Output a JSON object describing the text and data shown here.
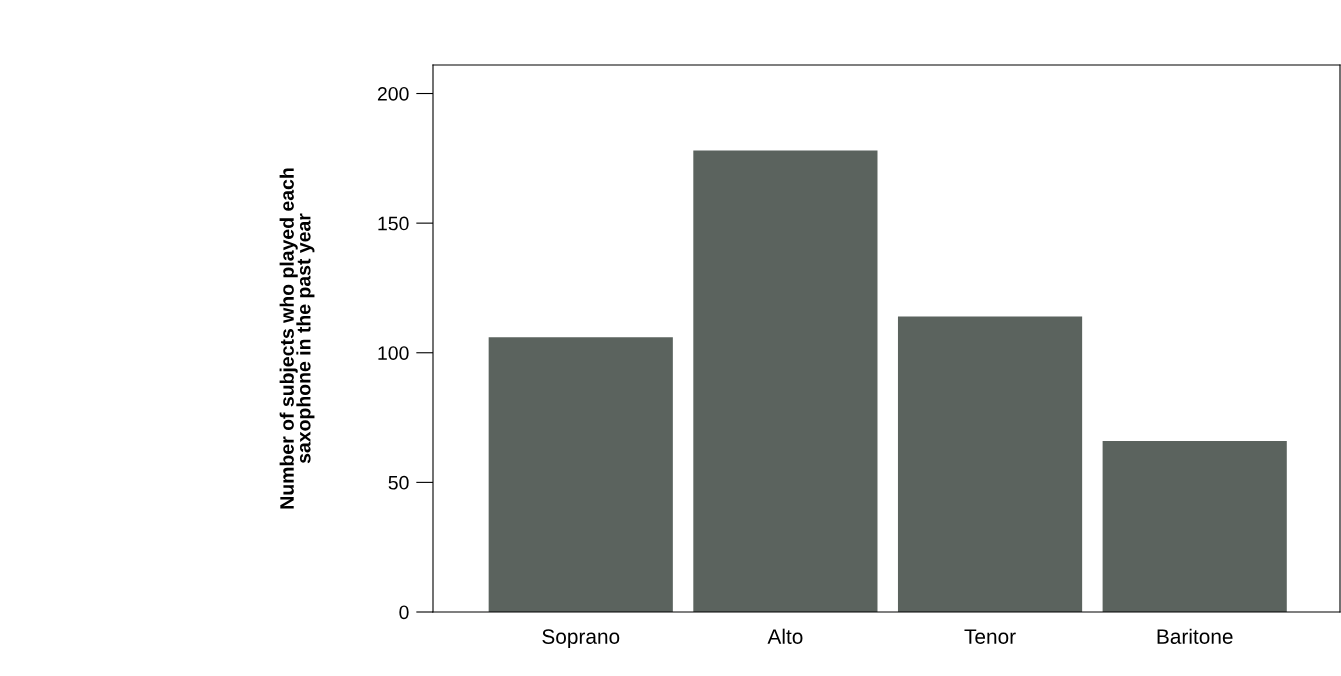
{
  "chart_data": {
    "type": "bar",
    "categories": [
      "Soprano",
      "Alto",
      "Tenor",
      "Baritone"
    ],
    "values": [
      106,
      178,
      114,
      66
    ],
    "color": "#5b635e",
    "ylabel": "Number of subjects who played each\nsaxophone in the past year",
    "ylim": [
      0,
      211
    ],
    "yticks": [
      0,
      50,
      100,
      150,
      200
    ],
    "grid": false,
    "legend": false
  }
}
